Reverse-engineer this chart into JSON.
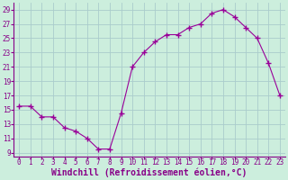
{
  "x": [
    0,
    1,
    2,
    3,
    4,
    5,
    6,
    7,
    8,
    9,
    10,
    11,
    12,
    13,
    14,
    15,
    16,
    17,
    18,
    19,
    20,
    21,
    22,
    23
  ],
  "y": [
    15.5,
    15.5,
    14.0,
    14.0,
    12.5,
    12.0,
    11.0,
    9.5,
    9.5,
    14.5,
    21.0,
    23.0,
    24.5,
    25.5,
    25.5,
    26.5,
    27.0,
    28.5,
    29.0,
    28.0,
    26.5,
    25.0,
    21.5,
    17.0
  ],
  "xlabel": "Windchill (Refroidissement éolien,°C)",
  "line_color": "#990099",
  "marker": "+",
  "marker_size": 4,
  "bg_color": "#cceedd",
  "grid_color": "#aacccc",
  "ylim": [
    8.5,
    30
  ],
  "xlim": [
    -0.5,
    23.5
  ],
  "yticks": [
    9,
    11,
    13,
    15,
    17,
    19,
    21,
    23,
    25,
    27,
    29
  ],
  "xticks": [
    0,
    1,
    2,
    3,
    4,
    5,
    6,
    7,
    8,
    9,
    10,
    11,
    12,
    13,
    14,
    15,
    16,
    17,
    18,
    19,
    20,
    21,
    22,
    23
  ],
  "tick_label_fontsize": 5.5,
  "xlabel_fontsize": 7.0,
  "text_color": "#880088"
}
